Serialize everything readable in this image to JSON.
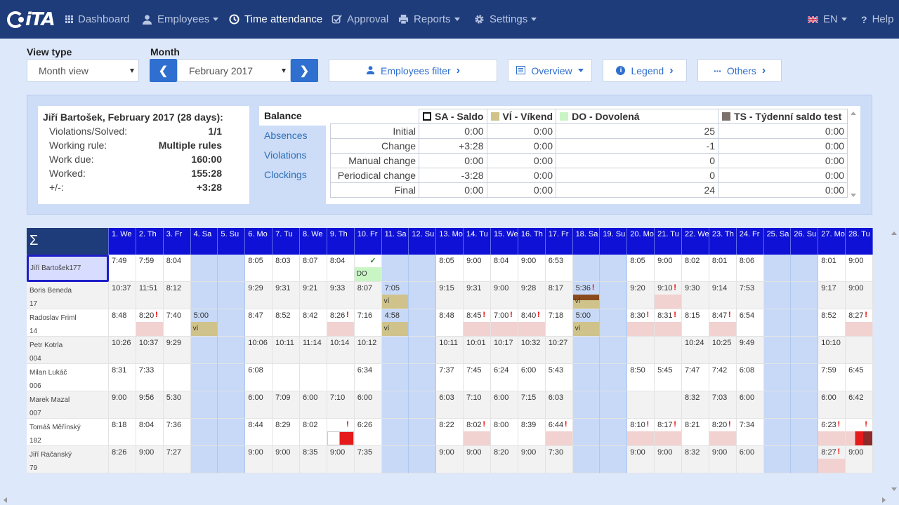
{
  "nav": {
    "logo": "iTA",
    "items": [
      {
        "label": "Dashboard",
        "icon": "grid-icon"
      },
      {
        "label": "Employees",
        "icon": "user-icon"
      },
      {
        "label": "Time attendance",
        "icon": "clock-icon"
      },
      {
        "label": "Approval",
        "icon": "checkbox-icon"
      },
      {
        "label": "Reports",
        "icon": "printer-icon"
      },
      {
        "label": "Settings",
        "icon": "gear-icon"
      }
    ],
    "lang": "EN",
    "help": "Help"
  },
  "controls": {
    "view_type_label": "View type",
    "view_type_value": "Month view",
    "month_label": "Month",
    "month_value": "February 2017",
    "employees_filter": "Employees filter",
    "overview": "Overview",
    "legend": "Legend",
    "others": "Others"
  },
  "summary": {
    "title": "Jiří Bartošek, February 2017 (28 days):",
    "rows": [
      {
        "label": "Violations/Solved:",
        "value": "1/1"
      },
      {
        "label": "Working rule:",
        "value": "Multiple rules"
      },
      {
        "label": "Work due:",
        "value": "160:00"
      },
      {
        "label": "Worked:",
        "value": "155:28"
      },
      {
        "label": "+/-:",
        "value": "+3:28"
      }
    ]
  },
  "tabs": [
    "Balance",
    "Absences",
    "Violations",
    "Clockings"
  ],
  "balance": {
    "columns": [
      {
        "label": "SA - Saldo",
        "color": "#ffffff"
      },
      {
        "label": "VÍ - Víkend",
        "color": "#cfc38b"
      },
      {
        "label": "DO - Dovolená",
        "color": "#c9f5c5"
      },
      {
        "label": "TS - Týdenní saldo test",
        "color": "#7c726b"
      }
    ],
    "rows": [
      {
        "label": "Initial",
        "values": [
          "0:00",
          "0:00",
          "25",
          "0:00"
        ]
      },
      {
        "label": "Change",
        "values": [
          "+3:28",
          "0:00",
          "-1",
          "0:00"
        ]
      },
      {
        "label": "Manual change",
        "values": [
          "0:00",
          "0:00",
          "0",
          "0:00"
        ]
      },
      {
        "label": "Periodical change",
        "values": [
          "-3:28",
          "0:00",
          "0",
          "0:00"
        ]
      },
      {
        "label": "Final",
        "values": [
          "0:00",
          "0:00",
          "24",
          "0:00"
        ]
      }
    ]
  },
  "calendar": {
    "sigma": "Σ",
    "days": [
      "1. We",
      "2. Th",
      "3. Fr",
      "4. Sa",
      "5. Su",
      "6. Mo",
      "7. Tu",
      "8. We",
      "9. Th",
      "10. Fr",
      "11. Sa",
      "12. Su",
      "13. Mo",
      "14. Tu",
      "15. We",
      "16. Th",
      "17. Fr",
      "18. Sa",
      "19. Su",
      "20. Mo",
      "21. Tu",
      "22. We",
      "23. Th",
      "24. Fr",
      "25. Sa",
      "26. Su",
      "27. Mo",
      "28. Tu"
    ],
    "employees": [
      {
        "name": "Jiří Bartošek",
        "id": "177",
        "times": [
          "7:49",
          "7:59",
          "8:04",
          "",
          "",
          "8:05",
          "8:03",
          "8:07",
          "8:04",
          "",
          "",
          "",
          "8:05",
          "9:00",
          "8:04",
          "9:00",
          "6:53",
          "",
          "",
          "8:05",
          "9:00",
          "8:02",
          "8:01",
          "8:06",
          "",
          "",
          "8:01",
          "9:00"
        ]
      },
      {
        "name": "Boris Beneda",
        "id": "17",
        "times": [
          "10:37",
          "11:51",
          "8:12",
          "",
          "",
          "9:29",
          "9:31",
          "9:21",
          "9:33",
          "8:07",
          "7:05",
          "",
          "9:15",
          "9:31",
          "9:00",
          "9:28",
          "8:17",
          "5:36",
          "",
          "9:20",
          "9:10",
          "9:30",
          "9:14",
          "7:53",
          "",
          "",
          "9:17",
          "9:00"
        ]
      },
      {
        "name": "Radoslav Friml",
        "id": "14",
        "times": [
          "8:48",
          "8:20",
          "7:40",
          "5:00",
          "",
          "8:47",
          "8:52",
          "8:42",
          "8:26",
          "7:16",
          "4:58",
          "",
          "8:48",
          "8:45",
          "7:00",
          "8:40",
          "7:18",
          "5:00",
          "",
          "8:30",
          "8:31",
          "8:15",
          "8:47",
          "6:54",
          "",
          "",
          "8:52",
          "8:27"
        ]
      },
      {
        "name": "Petr Kotrla",
        "id": "004",
        "times": [
          "10:26",
          "10:37",
          "9:29",
          "",
          "",
          "10:06",
          "10:11",
          "11:14",
          "10:14",
          "10:12",
          "",
          "",
          "10:11",
          "10:01",
          "10:17",
          "10:32",
          "10:27",
          "",
          "",
          "",
          "",
          "10:24",
          "10:25",
          "9:49",
          "",
          "",
          "10:10",
          ""
        ]
      },
      {
        "name": "Milan Lukáč",
        "id": "006",
        "times": [
          "8:31",
          "7:33",
          "",
          "",
          "",
          "6:08",
          "",
          "",
          "",
          "6:34",
          "",
          "",
          "7:37",
          "7:45",
          "6:24",
          "6:00",
          "5:43",
          "",
          "",
          "8:50",
          "5:45",
          "7:47",
          "7:42",
          "6:08",
          "",
          "",
          "7:59",
          "6:45"
        ]
      },
      {
        "name": "Marek Mazal",
        "id": "007",
        "times": [
          "9:00",
          "9:56",
          "5:30",
          "",
          "",
          "6:00",
          "7:09",
          "6:00",
          "7:10",
          "6:00",
          "",
          "",
          "6:03",
          "7:10",
          "6:00",
          "7:15",
          "6:03",
          "",
          "",
          "",
          "",
          "8:32",
          "7:03",
          "6:00",
          "",
          "",
          "6:00",
          "6:42"
        ]
      },
      {
        "name": "Tomáš Měřínský",
        "id": "182",
        "times": [
          "8:18",
          "8:04",
          "7:36",
          "",
          "",
          "8:44",
          "8:29",
          "8:02",
          "",
          "6:26",
          "",
          "",
          "8:22",
          "8:02",
          "8:00",
          "8:39",
          "6:44",
          "",
          "",
          "8:10",
          "8:17",
          "8:21",
          "8:20",
          "7:34",
          "",
          "",
          "6:23",
          ""
        ]
      },
      {
        "name": "Jiří Račanský",
        "id": "79",
        "times": [
          "8:26",
          "9:00",
          "7:27",
          "",
          "",
          "9:00",
          "9:00",
          "8:35",
          "9:00",
          "7:35",
          "",
          "",
          "9:00",
          "9:00",
          "8:20",
          "9:00",
          "7:30",
          "",
          "",
          "9:00",
          "9:00",
          "8:32",
          "9:00",
          "6:00",
          "",
          "",
          "8:27",
          "9:00"
        ]
      }
    ],
    "weekend_cols": [
      3,
      4,
      10,
      11,
      17,
      18,
      24,
      25
    ],
    "flags": [
      {
        "row": 0,
        "col": 9,
        "mark": "✓",
        "bar": "DO",
        "color": "#c9f5c5"
      },
      {
        "row": 1,
        "col": 10,
        "bar": "VÍ",
        "color": "#cfc38b"
      },
      {
        "row": 1,
        "col": 17,
        "mark": "!",
        "bar": "VÍ",
        "color": "#cfc38b",
        "strip": "#8a4b1c"
      },
      {
        "row": 1,
        "col": 20,
        "mark": "!",
        "color": "#f2d1d1"
      },
      {
        "row": 2,
        "col": 1,
        "mark": "!",
        "color": "#f2d1d1"
      },
      {
        "row": 2,
        "col": 3,
        "bar": "VÍ",
        "color": "#cfc38b"
      },
      {
        "row": 2,
        "col": 8,
        "mark": "!",
        "color": "#f2d1d1"
      },
      {
        "row": 2,
        "col": 10,
        "bar": "VÍ",
        "color": "#cfc38b"
      },
      {
        "row": 2,
        "col": 13,
        "mark": "!",
        "color": "#f2d1d1"
      },
      {
        "row": 2,
        "col": 14,
        "mark": "!",
        "color": "#f2d1d1"
      },
      {
        "row": 2,
        "col": 15,
        "mark": "!",
        "color": "#f2d1d1"
      },
      {
        "row": 2,
        "col": 17,
        "bar": "VÍ",
        "color": "#cfc38b"
      },
      {
        "row": 2,
        "col": 19,
        "mark": "!",
        "color": "#f2d1d1"
      },
      {
        "row": 2,
        "col": 20,
        "mark": "!",
        "color": "#f2d1d1"
      },
      {
        "row": 2,
        "col": 22,
        "mark": "!",
        "color": "#f2d1d1"
      },
      {
        "row": 2,
        "col": 27,
        "mark": "!",
        "color": "#f2d1d1"
      },
      {
        "row": 6,
        "col": 8,
        "mark": "!",
        "color": "#e51a1a"
      },
      {
        "row": 6,
        "col": 13,
        "mark": "!",
        "color": "#f2d1d1"
      },
      {
        "row": 6,
        "col": 16,
        "mark": "!",
        "color": "#f2d1d1"
      },
      {
        "row": 6,
        "col": 19,
        "mark": "!",
        "color": "#f2d1d1"
      },
      {
        "row": 6,
        "col": 20,
        "mark": "!",
        "color": "#f2d1d1"
      },
      {
        "row": 6,
        "col": 22,
        "mark": "!",
        "color": "#f2d1d1"
      },
      {
        "row": 6,
        "col": 26,
        "mark": "!",
        "color": "#f2d1d1"
      },
      {
        "row": 6,
        "col": 27,
        "mark": "!",
        "color": "#e51a1a"
      },
      {
        "row": 7,
        "col": 26,
        "mark": "!",
        "color": "#f2d1d1"
      }
    ]
  }
}
